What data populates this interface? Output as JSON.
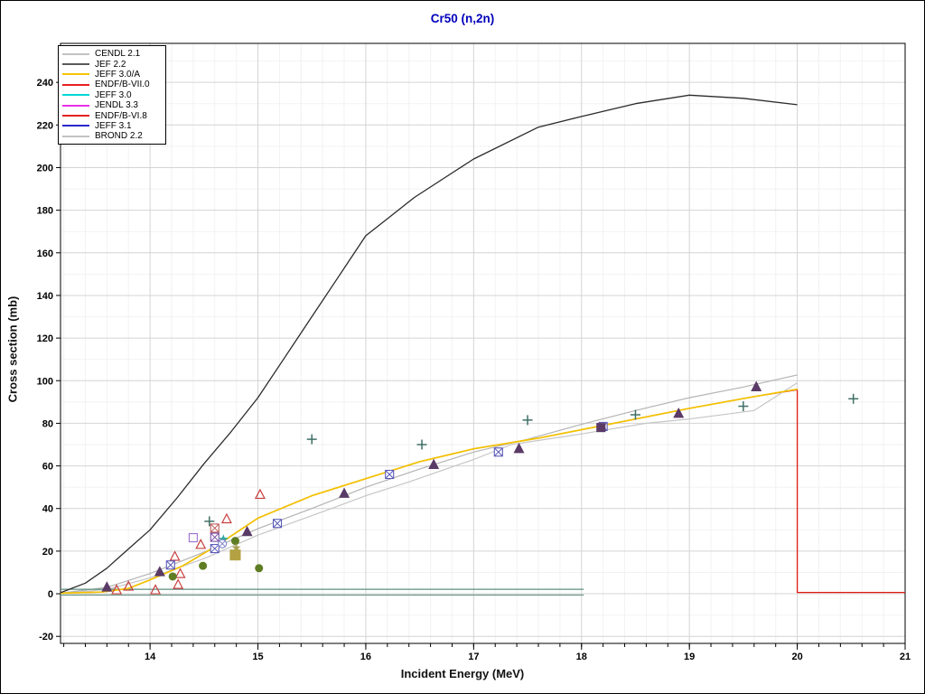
{
  "title": "Cr50 (n,2n)",
  "legend": {
    "entries": [
      {
        "label": "CENDL 2.1",
        "color": "#c2c2c2"
      },
      {
        "label": "JEF 2.2",
        "color": "#5a5a5a"
      },
      {
        "label": "JEFF 3.0/A",
        "color": "#f5c400"
      },
      {
        "label": "ENDF/B-VII.0",
        "color": "#e62020"
      },
      {
        "label": "JEFF 3.0",
        "color": "#00d8d8"
      },
      {
        "label": "JENDL 3.3",
        "color": "#e830e8"
      },
      {
        "label": "ENDF/B-VI.8",
        "color": "#e62020"
      },
      {
        "label": "JEFF 3.1",
        "color": "#2828cc"
      },
      {
        "label": "BROND 2.2",
        "color": "#c2c2c2"
      }
    ]
  },
  "chart_data": {
    "type": "line",
    "title": "Cr50 (n,2n)",
    "xlabel": "Incident Energy (MeV)",
    "ylabel": "Cross section (mb)",
    "xlim": [
      13.17,
      21.0
    ],
    "ylim": [
      -23.3,
      258.3
    ],
    "xticks": [
      14,
      15,
      16,
      17,
      18,
      19,
      20,
      21
    ],
    "yticks": [
      -20,
      0,
      20,
      40,
      60,
      80,
      100,
      120,
      140,
      160,
      180,
      200,
      220,
      240
    ],
    "x_minor_step": 0.2,
    "y_minor_step": 10,
    "grid": true,
    "legend_position": "top-left",
    "series": [
      {
        "name": "ENDF/B-VII.0",
        "color": "#e11810",
        "width": 1.3,
        "points": [
          [
            13.17,
            0.3
          ],
          [
            13.55,
            0.8
          ],
          [
            13.8,
            2.5
          ],
          [
            14,
            6.5
          ],
          [
            14.3,
            13
          ],
          [
            14.6,
            22
          ],
          [
            15,
            35.5
          ],
          [
            15.5,
            46
          ],
          [
            16,
            54
          ],
          [
            16.5,
            62
          ],
          [
            17,
            68
          ],
          [
            17.6,
            73
          ],
          [
            18,
            77
          ],
          [
            18.5,
            82
          ],
          [
            19,
            87
          ],
          [
            19.6,
            92.5
          ],
          [
            20,
            95.7
          ],
          [
            20,
            0.6
          ],
          [
            21,
            0.6
          ]
        ]
      },
      {
        "name": "BROND 2.2",
        "color": "#c6c6c6",
        "width": 1.2,
        "points": [
          [
            13.17,
            0.2
          ],
          [
            13.6,
            2
          ],
          [
            14,
            7.5
          ],
          [
            14.5,
            16.5
          ],
          [
            15,
            27.5
          ],
          [
            15.6,
            38.5
          ],
          [
            16,
            46
          ],
          [
            16.4,
            52.5
          ],
          [
            17,
            63
          ],
          [
            17.35,
            70
          ],
          [
            18,
            75
          ],
          [
            18.6,
            80
          ],
          [
            19,
            82
          ],
          [
            19.6,
            86
          ],
          [
            20,
            99
          ]
        ]
      },
      {
        "name": "CENDL 2.1",
        "color": "#b4b4b4",
        "width": 1.2,
        "points": [
          [
            13.17,
            0.3
          ],
          [
            13.6,
            3
          ],
          [
            14,
            9.5
          ],
          [
            14.5,
            19.5
          ],
          [
            15,
            30.5
          ],
          [
            15.5,
            40
          ],
          [
            16,
            50
          ],
          [
            16.5,
            58.5
          ],
          [
            17,
            66.5
          ],
          [
            17.5,
            72.5
          ],
          [
            18,
            79.5
          ],
          [
            18.5,
            86
          ],
          [
            19,
            92
          ],
          [
            19.5,
            97
          ],
          [
            20,
            102.7
          ]
        ]
      },
      {
        "name": "JEFF 3.0",
        "color": "#5c8f7e",
        "width": 1.2,
        "points": [
          [
            13.17,
            2.1
          ],
          [
            18.02,
            2.1
          ]
        ]
      },
      {
        "name": "JEFF 3.1",
        "color": "#6e9688",
        "width": 1.2,
        "points": [
          [
            13.17,
            -0.6
          ],
          [
            18.02,
            -0.6
          ]
        ]
      },
      {
        "name": "JENDL 3.3",
        "color": "#e830e8",
        "width": 1.2,
        "points": []
      },
      {
        "name": "ENDF/B-VI.8",
        "color": "#e62020",
        "width": 1.2,
        "points": []
      },
      {
        "name": "JEFF 3.0/A",
        "color": "#f3c300",
        "width": 1.7,
        "points": [
          [
            13.17,
            0.3
          ],
          [
            13.55,
            0.8
          ],
          [
            13.8,
            2.5
          ],
          [
            14,
            6.5
          ],
          [
            14.3,
            13
          ],
          [
            14.6,
            22
          ],
          [
            15,
            35.5
          ],
          [
            15.5,
            46
          ],
          [
            16,
            54
          ],
          [
            16.5,
            62
          ],
          [
            17,
            68
          ],
          [
            17.6,
            73
          ],
          [
            18,
            77
          ],
          [
            18.5,
            82
          ],
          [
            19,
            87
          ],
          [
            19.6,
            92.5
          ],
          [
            20,
            96
          ]
        ]
      },
      {
        "name": "JEF 2.2",
        "color": "#2b2b2b",
        "width": 1.3,
        "points": [
          [
            13.17,
            0.5
          ],
          [
            13.4,
            5
          ],
          [
            13.6,
            12
          ],
          [
            13.8,
            21
          ],
          [
            14,
            30
          ],
          [
            14.25,
            45
          ],
          [
            14.5,
            61
          ],
          [
            14.75,
            76
          ],
          [
            15,
            92
          ],
          [
            15.25,
            111
          ],
          [
            15.5,
            130
          ],
          [
            15.75,
            149
          ],
          [
            16,
            168
          ],
          [
            16.2,
            176
          ],
          [
            16.45,
            186
          ],
          [
            17,
            204
          ],
          [
            17.6,
            219
          ],
          [
            18,
            224
          ],
          [
            18.5,
            230
          ],
          [
            19,
            234
          ],
          [
            19.5,
            232.5
          ],
          [
            20,
            229.5
          ]
        ]
      }
    ],
    "scatter": [
      {
        "name": "exp-plus",
        "marker": "plus",
        "color": "#3f6f66",
        "size": 11,
        "points": [
          [
            14.55,
            34
          ],
          [
            15.5,
            72.5
          ],
          [
            16.52,
            70
          ],
          [
            17.5,
            81.5
          ],
          [
            18.5,
            84
          ],
          [
            19.5,
            88
          ],
          [
            20.52,
            91.5
          ]
        ]
      },
      {
        "name": "exp-triangle-open-red",
        "marker": "triangle-open",
        "color": "#c84040",
        "size": 10,
        "points": [
          [
            13.69,
            1.7
          ],
          [
            13.8,
            3.4
          ],
          [
            14.05,
            1.7
          ],
          [
            14.26,
            4.2
          ],
          [
            14.28,
            9.3
          ],
          [
            14.23,
            17.4
          ],
          [
            14.47,
            23
          ],
          [
            14.71,
            35
          ],
          [
            15.02,
            46.5
          ]
        ]
      },
      {
        "name": "exp-triangle-filled-purple",
        "marker": "triangle-filled",
        "color": "#5a3a66",
        "size": 10,
        "points": [
          [
            13.6,
            3
          ],
          [
            14.09,
            10.2
          ],
          [
            14.9,
            29
          ],
          [
            15.8,
            47
          ],
          [
            16.63,
            60.5
          ],
          [
            17.42,
            68
          ],
          [
            18.9,
            84.5
          ],
          [
            19.62,
            97
          ]
        ]
      },
      {
        "name": "exp-square-x-blue",
        "marker": "square-x",
        "color": "#5a5ab8",
        "size": 9,
        "points": [
          [
            14.19,
            13.5
          ],
          [
            14.6,
            21.2
          ],
          [
            15.18,
            33
          ],
          [
            16.22,
            56
          ],
          [
            17.23,
            66.5
          ],
          [
            18.2,
            78.5
          ]
        ]
      },
      {
        "name": "exp-square-x-red",
        "marker": "square-x",
        "color": "#bb5a5a",
        "size": 9,
        "points": [
          [
            14.6,
            30.8
          ]
        ]
      },
      {
        "name": "exp-square-x-purple",
        "marker": "square-x",
        "color": "#7a4fa8",
        "size": 9,
        "points": [
          [
            14.6,
            26.5
          ]
        ]
      },
      {
        "name": "exp-square-open-purple",
        "marker": "square-open",
        "color": "#9a6fd0",
        "size": 9,
        "points": [
          [
            14.4,
            26.3
          ]
        ]
      },
      {
        "name": "exp-square-filled-purple",
        "marker": "square-filled",
        "color": "#5a3a66",
        "size": 9,
        "points": [
          [
            18.18,
            78
          ]
        ]
      },
      {
        "name": "exp-star-teal",
        "marker": "star",
        "color": "#2fa8a0",
        "size": 11,
        "points": [
          [
            14.68,
            25.5
          ]
        ]
      },
      {
        "name": "exp-circle-x-blue",
        "marker": "circle-x",
        "color": "#8086cc",
        "size": 9,
        "points": [
          [
            14.67,
            23.5
          ]
        ]
      },
      {
        "name": "exp-circle-filled-olive",
        "marker": "circle-filled",
        "color": "#5f7d22",
        "size": 9,
        "points": [
          [
            14.21,
            8.1
          ],
          [
            14.49,
            13.1
          ],
          [
            14.79,
            24.8
          ],
          [
            15.01,
            12
          ]
        ]
      },
      {
        "name": "exp-star-khaki",
        "marker": "star",
        "color": "#a8a050",
        "size": 10,
        "points": [
          [
            14.8,
            21.5
          ]
        ]
      },
      {
        "name": "exp-square-filled-khaki",
        "marker": "square-filled",
        "color": "#b3a243",
        "size": 11,
        "points": [
          [
            14.79,
            18.2
          ]
        ]
      }
    ]
  }
}
